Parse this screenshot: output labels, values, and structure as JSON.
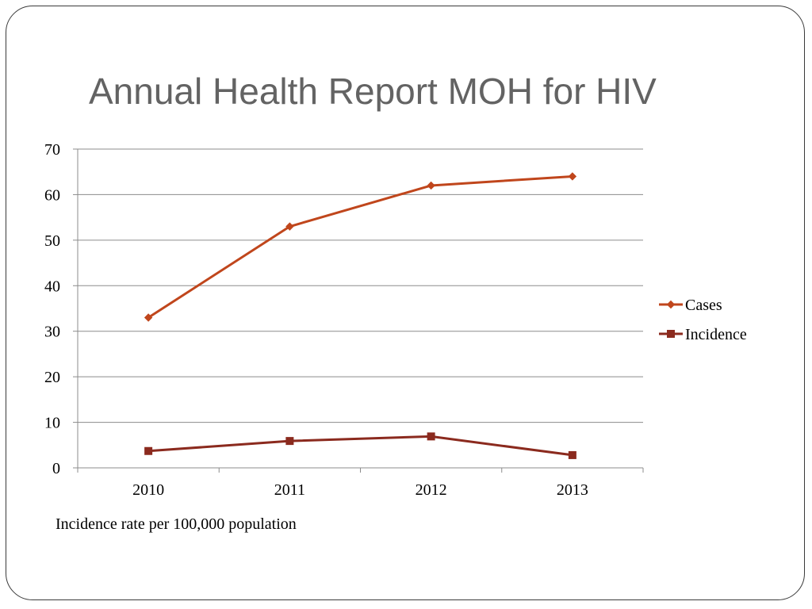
{
  "slide": {
    "title": "Annual Health Report MOH for HIV",
    "note": "Incidence rate per 100,000 population"
  },
  "chart_data": {
    "type": "line",
    "title": "",
    "xlabel": "",
    "ylabel": "",
    "categories": [
      "2010",
      "2011",
      "2012",
      "2013"
    ],
    "ylim": [
      0,
      70
    ],
    "yticks": [
      0,
      10,
      20,
      30,
      40,
      50,
      60,
      70
    ],
    "grid": true,
    "legend_position": "right",
    "series": [
      {
        "name": "Cases",
        "values": [
          33,
          53,
          62,
          64
        ],
        "color": "#C0461C",
        "marker": "diamond"
      },
      {
        "name": "Incidence",
        "values": [
          3.7,
          5.9,
          6.9,
          2.8
        ],
        "color": "#8B2A1E",
        "marker": "square"
      }
    ]
  }
}
